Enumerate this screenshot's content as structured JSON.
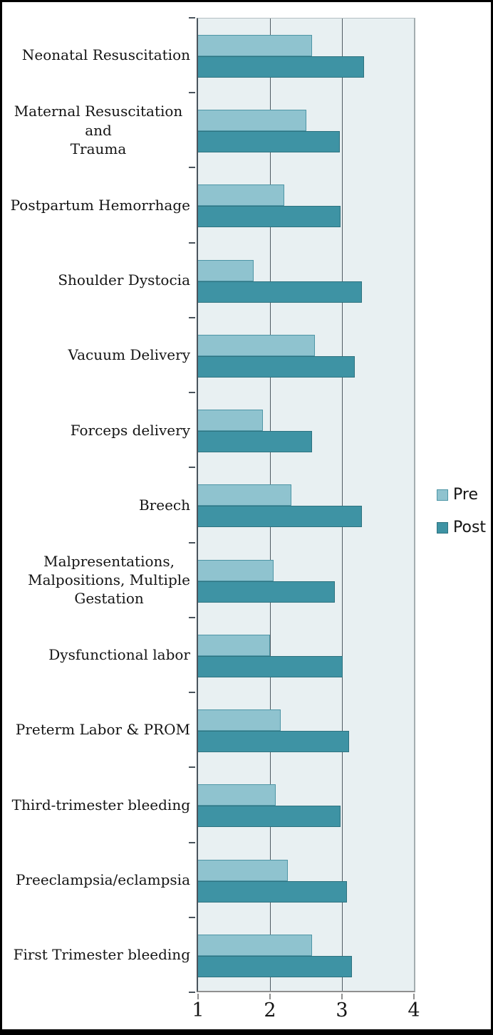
{
  "figure": {
    "legend": [
      {
        "label": "Pre"
      },
      {
        "label": "Post"
      }
    ],
    "x_axis": {
      "tick_labels": [
        "1",
        "2",
        "3",
        "4"
      ],
      "min": 1,
      "max": 4
    },
    "colors": {
      "pre_fill": "#8FC3CF",
      "pre_border": "#4E96A6",
      "post_fill": "#3E93A4",
      "post_border": "#2E7380",
      "plot_bg": "#E8F0F2",
      "gridline": "#4F5A62",
      "frame_border": "#000000"
    }
  },
  "chart_data": {
    "type": "bar",
    "orientation": "horizontal",
    "title": "",
    "xlabel": "",
    "ylabel": "",
    "xlim": [
      1,
      4
    ],
    "x_ticks": [
      1,
      2,
      3,
      4
    ],
    "grid": "vertical-gridlines-at-2-and-3",
    "legend_position": "right",
    "categories": [
      "Neonatal Resuscitation",
      "Maternal Resuscitation and\nTrauma",
      "Postpartum Hemorrhage",
      "Shoulder Dystocia",
      "Vacuum Delivery",
      "Forceps delivery",
      "Breech",
      "Malpresentations,\nMalpositions, Multiple\nGestation",
      "Dysfunctional labor",
      "Preterm Labor & PROM",
      "Third-trimester bleeding",
      "Preeclampsia/eclampsia",
      "First Trimester bleeding"
    ],
    "series": [
      {
        "name": "Pre",
        "values": [
          2.58,
          2.5,
          2.2,
          1.77,
          2.62,
          1.9,
          2.3,
          2.05,
          2.0,
          2.15,
          2.08,
          2.25,
          2.58
        ]
      },
      {
        "name": "Post",
        "values": [
          3.31,
          2.97,
          2.98,
          3.28,
          3.18,
          2.58,
          3.28,
          2.9,
          3.01,
          3.1,
          2.98,
          3.07,
          3.14
        ]
      }
    ]
  }
}
